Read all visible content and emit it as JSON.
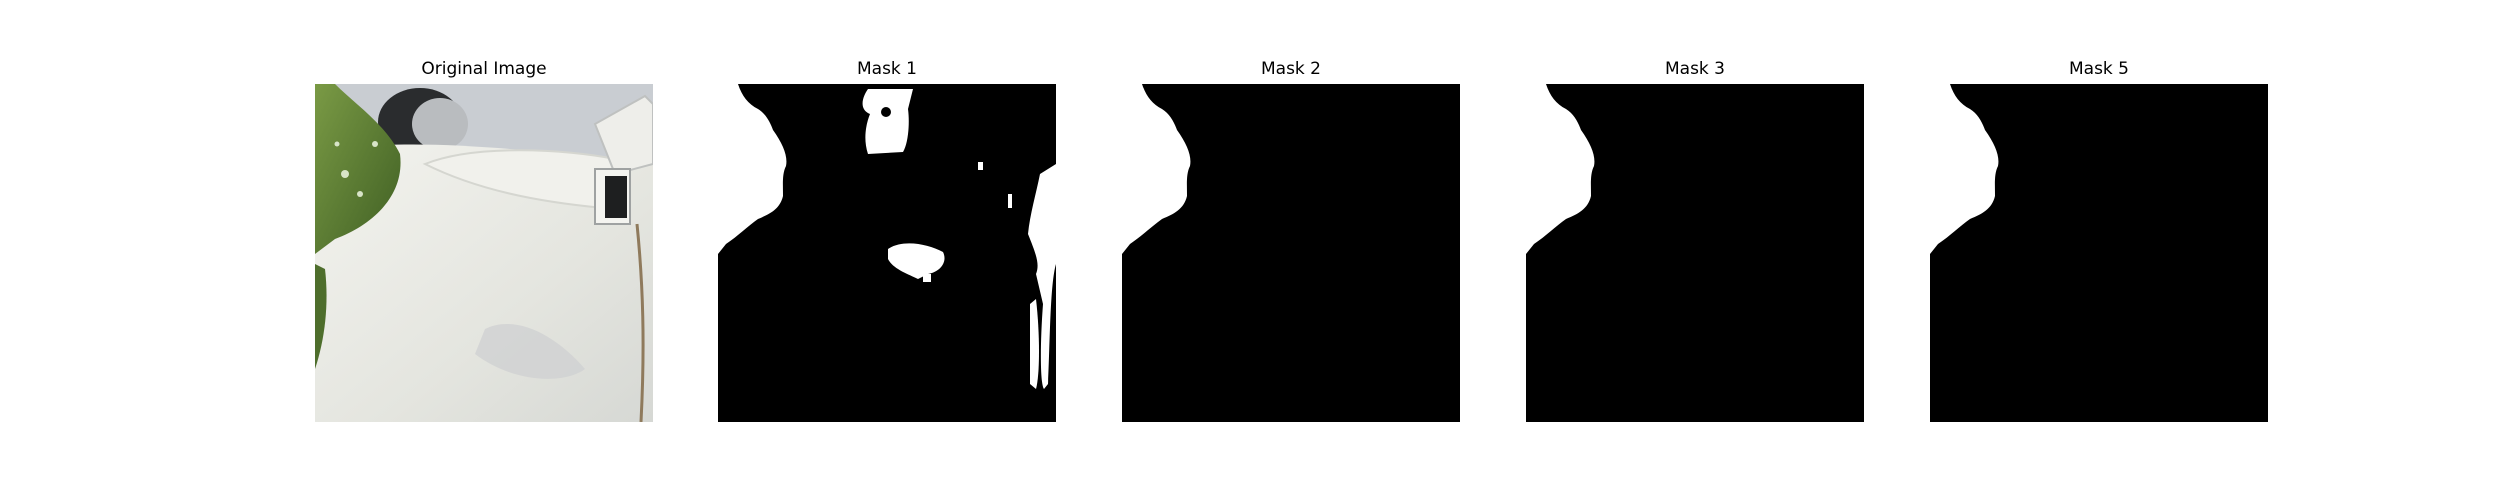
{
  "figure": {
    "panels": [
      {
        "title": "Original Image",
        "content": "photo"
      },
      {
        "title": "Mask 1",
        "content": "mask"
      },
      {
        "title": "Mask 2",
        "content": "mask"
      },
      {
        "title": "Mask 3",
        "content": "mask"
      },
      {
        "title": "Mask 5",
        "content": "mask"
      }
    ]
  },
  "colors": {
    "mask_foreground": "#ffffff",
    "mask_background": "#000000",
    "leaf": "#5b7a35",
    "surface": "#e6e7e1",
    "sky": "#c8ccd0"
  }
}
